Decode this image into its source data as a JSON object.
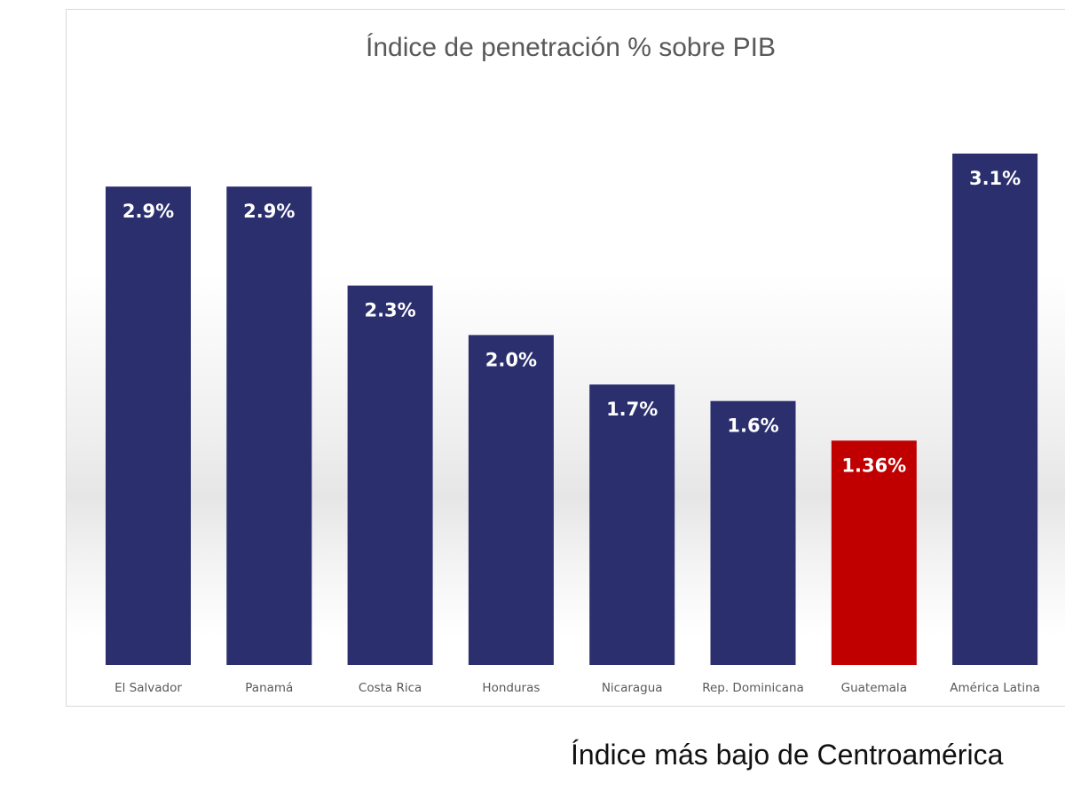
{
  "chart_data": {
    "type": "bar",
    "title": "Índice de penetración % sobre PIB",
    "xlabel": "",
    "ylabel": "",
    "categories": [
      "El Salvador",
      "Panamá",
      "Costa Rica",
      "Honduras",
      "Nicaragua",
      "Rep. Dominicana",
      "Guatemala",
      "América Latina"
    ],
    "values": [
      2.9,
      2.9,
      2.3,
      2.0,
      1.7,
      1.6,
      1.36,
      3.1
    ],
    "data_labels": [
      "2.9%",
      "2.9%",
      "2.3%",
      "2.0%",
      "1.7%",
      "1.6%",
      "1.36%",
      "3.1%"
    ],
    "ylim": [
      0,
      3.1
    ],
    "grid": false,
    "legend": "none",
    "colors": {
      "default": "#2b2f6e",
      "highlight": "#c00000",
      "highlight_category": "Guatemala"
    }
  },
  "caption": "Índice más bajo de Centroamérica"
}
